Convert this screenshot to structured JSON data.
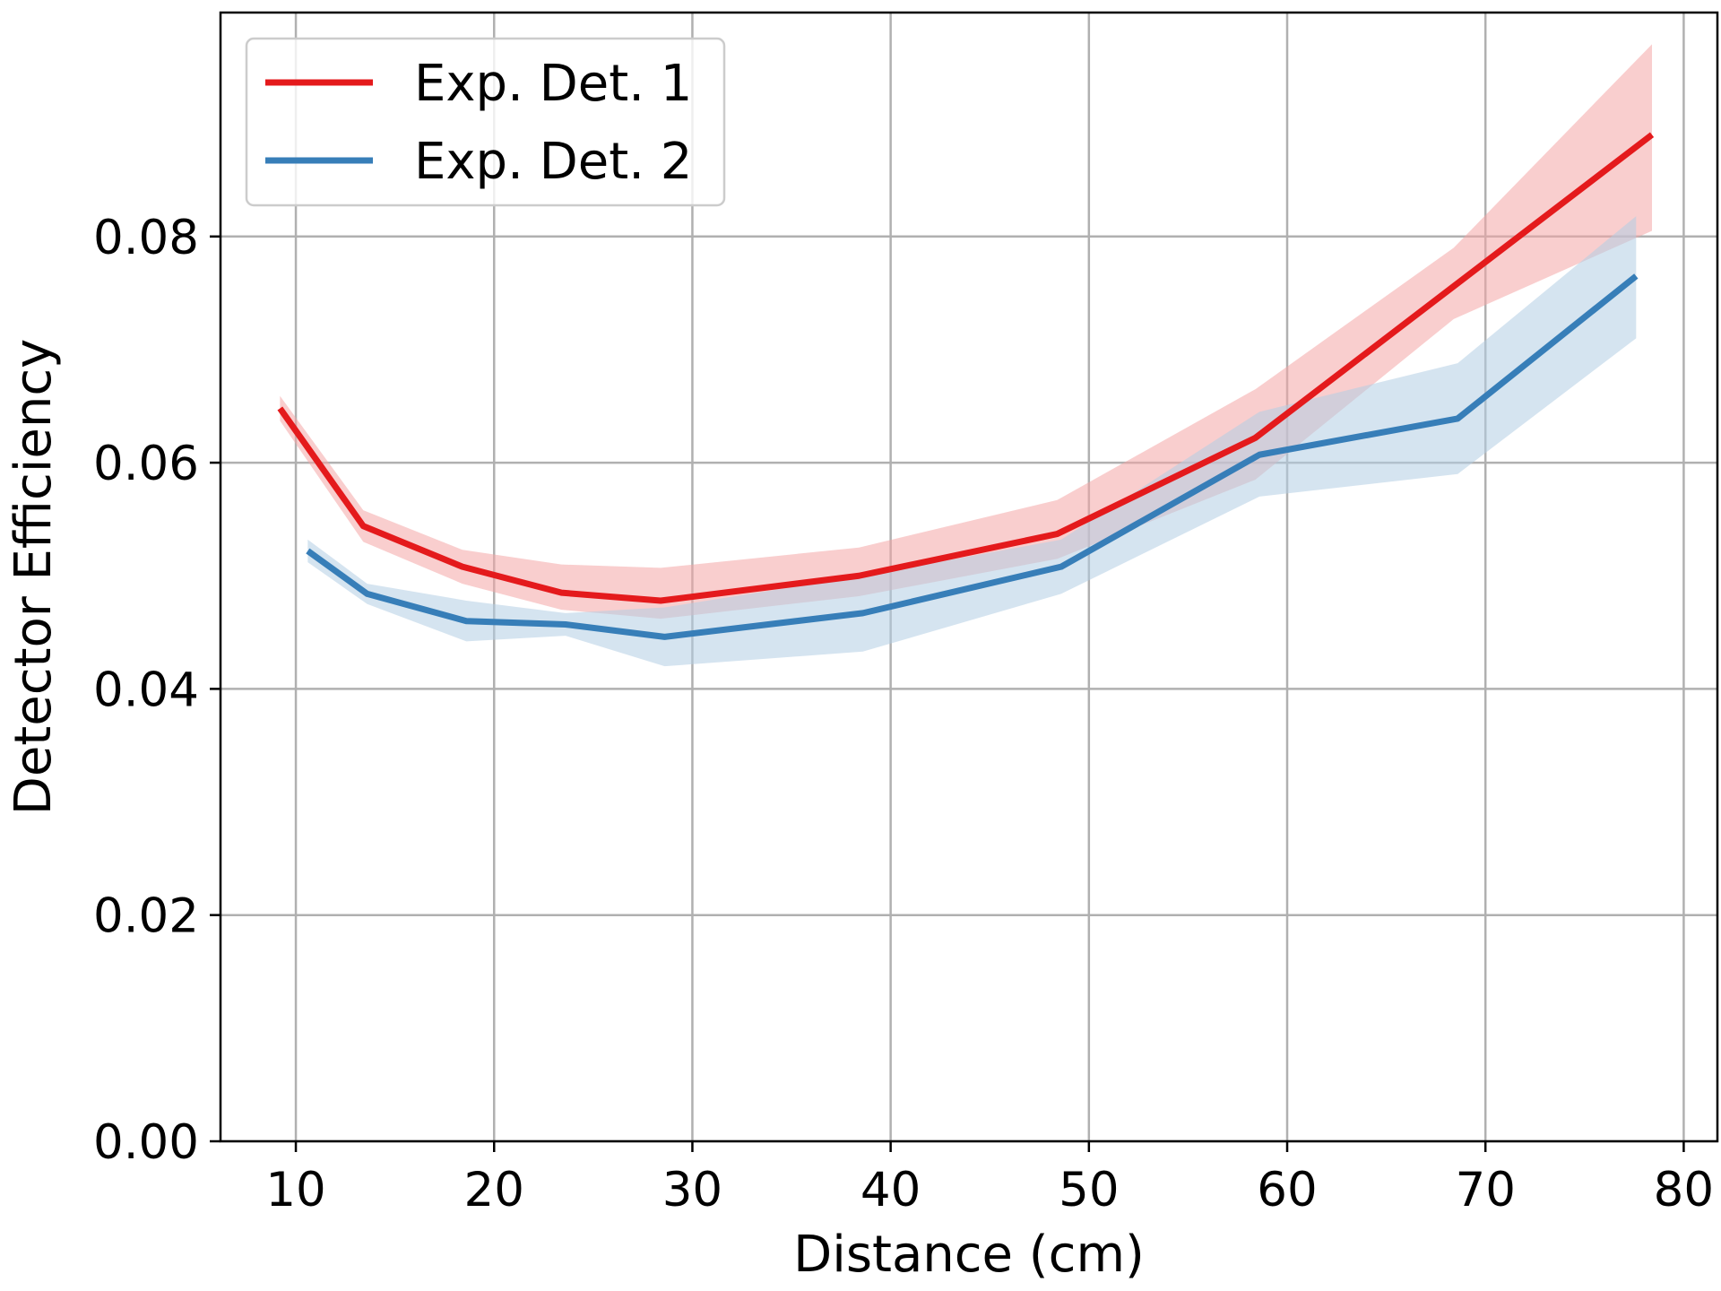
{
  "chart_data": {
    "type": "line",
    "title": "",
    "xlabel": "Distance (cm)",
    "ylabel": "Detector Efficiency",
    "xlim": [
      6.2,
      81.7
    ],
    "ylim": [
      0.0,
      0.0998
    ],
    "xticks": [
      10,
      20,
      30,
      40,
      50,
      60,
      70,
      80
    ],
    "xtick_labels": [
      "10",
      "20",
      "30",
      "40",
      "50",
      "60",
      "70",
      "80"
    ],
    "yticks": [
      0.0,
      0.02,
      0.04,
      0.06,
      0.08
    ],
    "ytick_labels": [
      "0.00",
      "0.02",
      "0.04",
      "0.06",
      "0.08"
    ],
    "grid": true,
    "legend_position": "top-left",
    "series": [
      {
        "name": "Exp. Det. 1",
        "color": "#e41a1c",
        "band_color": "#f4a5a6",
        "x": [
          9.2,
          13.4,
          18.4,
          23.4,
          28.4,
          38.4,
          48.4,
          58.4,
          68.4,
          78.4
        ],
        "y": [
          0.0648,
          0.0544,
          0.0508,
          0.0485,
          0.0478,
          0.05,
          0.0537,
          0.0622,
          0.0756,
          0.089
        ],
        "lower": [
          0.0637,
          0.053,
          0.0493,
          0.047,
          0.0462,
          0.0482,
          0.0515,
          0.0585,
          0.0727,
          0.0805
        ],
        "upper": [
          0.0659,
          0.0558,
          0.0523,
          0.051,
          0.0507,
          0.0525,
          0.0567,
          0.0665,
          0.079,
          0.097
        ]
      },
      {
        "name": "Exp. Det. 2",
        "color": "#377eb8",
        "band_color": "#b3cde3",
        "x": [
          10.6,
          13.6,
          18.6,
          23.6,
          28.6,
          38.6,
          48.6,
          58.6,
          68.6,
          77.6
        ],
        "y": [
          0.0522,
          0.0484,
          0.046,
          0.0457,
          0.0446,
          0.0467,
          0.0508,
          0.0607,
          0.0639,
          0.0765
        ],
        "lower": [
          0.0512,
          0.0475,
          0.0442,
          0.0447,
          0.042,
          0.0433,
          0.0484,
          0.057,
          0.059,
          0.071
        ],
        "upper": [
          0.0532,
          0.0493,
          0.0478,
          0.0467,
          0.0472,
          0.05,
          0.0532,
          0.0645,
          0.0688,
          0.0818
        ]
      }
    ]
  }
}
